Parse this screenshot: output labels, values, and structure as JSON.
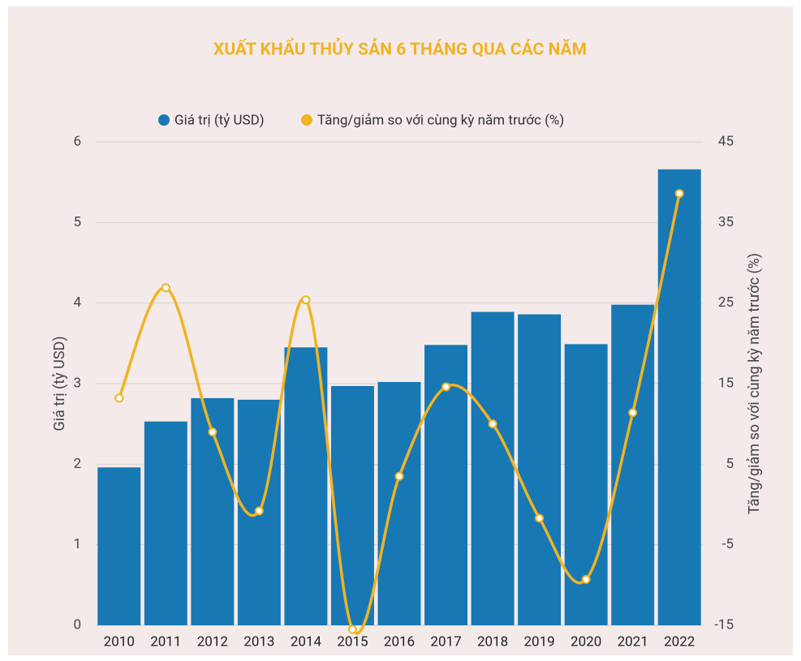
{
  "chart_data": {
    "type": "bar_line",
    "title": "XUẤT KHẨU THỦY SẢN 6 THÁNG QUA CÁC NĂM",
    "categories": [
      "2010",
      "2011",
      "2012",
      "2013",
      "2014",
      "2015",
      "2016",
      "2017",
      "2018",
      "2019",
      "2020",
      "2021",
      "2022"
    ],
    "series": [
      {
        "name": "Giá trị (tỷ USD)",
        "color": "#1778b4",
        "type": "bar",
        "values": [
          1.96,
          2.53,
          2.82,
          2.8,
          3.45,
          2.97,
          3.02,
          3.48,
          3.89,
          3.86,
          3.49,
          3.98,
          5.66
        ]
      },
      {
        "name": "Tăng/giảm so với cùng kỳ năm trước (%)",
        "color": "#f0b323",
        "type": "line",
        "axis": "y2",
        "values": [
          13.2,
          26.9,
          9.0,
          -0.8,
          25.4,
          -15.5,
          3.5,
          14.6,
          10.0,
          -1.7,
          -9.3,
          11.4,
          38.6
        ]
      }
    ],
    "y_label": "Giá trị (tỷ USD)",
    "y2_label": "Tăng/giảm so với cùng kỳ năm trước (%)",
    "ylim": [
      0,
      6
    ],
    "yticks": [
      0,
      1,
      2,
      3,
      4,
      5,
      6
    ],
    "y2lim": [
      -15,
      45
    ],
    "y2ticks": [
      -15,
      -5,
      5,
      15,
      25,
      35,
      45
    ],
    "grid": true,
    "legend": "top"
  }
}
